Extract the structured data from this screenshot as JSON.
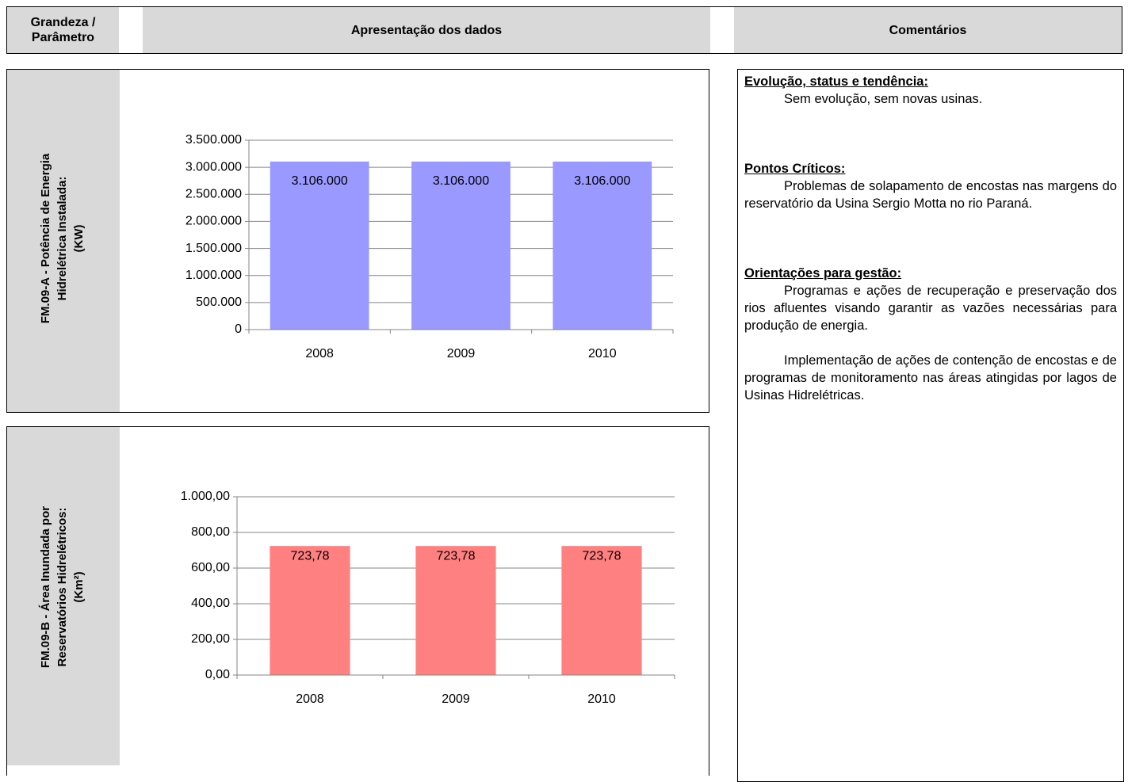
{
  "header": {
    "parameter": [
      "Grandeza /",
      "Parâmetro"
    ],
    "data": "Apresentação dos dados",
    "comments": "Comentários"
  },
  "parameters": [
    {
      "lines": [
        "FM.09-A - Potência de Energia",
        "Hidrelétrica Instalada:",
        "(KW)"
      ]
    },
    {
      "lines": [
        "FM.09-B - Área Inundada por",
        "Reservatórios Hidrelétricos:",
        "(Km²)"
      ]
    }
  ],
  "chart_data": [
    {
      "type": "bar",
      "categories": [
        "2008",
        "2009",
        "2010"
      ],
      "values": [
        3106000,
        3106000,
        3106000
      ],
      "value_labels": [
        "3.106.000",
        "3.106.000",
        "3.106.000"
      ],
      "color": "#9999ff",
      "ylim": [
        0,
        3500000
      ],
      "yticks": [
        0,
        {
          "value": 500000,
          "label": "500.000"
        },
        {
          "value": 1000000,
          "label": "1.000.000"
        },
        {
          "value": 1500000,
          "label": "1.500.000"
        },
        {
          "value": 2000000,
          "label": "2.000.000"
        },
        {
          "value": 2500000,
          "label": "2.500.000"
        },
        {
          "value": 3000000,
          "label": "3.000.000"
        },
        {
          "value": 3500000,
          "label": "3.500.000"
        }
      ],
      "grid": true
    },
    {
      "type": "bar",
      "categories": [
        "2008",
        "2009",
        "2010"
      ],
      "values": [
        723.78,
        723.78,
        723.78
      ],
      "value_labels": [
        "723,78",
        "723,78",
        "723,78"
      ],
      "color": "#ff8080",
      "ylim": [
        0,
        1000
      ],
      "yticks": [
        {
          "value": 0,
          "label": "0,00"
        },
        {
          "value": 200,
          "label": "200,00"
        },
        {
          "value": 400,
          "label": "400,00"
        },
        {
          "value": 600,
          "label": "600,00"
        },
        {
          "value": 800,
          "label": "800,00"
        },
        {
          "value": 1000,
          "label": "1.000,00"
        }
      ],
      "grid": true
    }
  ],
  "comments": [
    {
      "heading": "Evolução, status e tendência:",
      "paragraphs": [
        "Sem evolução, sem novas usinas."
      ]
    },
    {
      "heading": "Pontos Críticos:",
      "paragraphs": [
        "Problemas de solapamento de encostas nas margens do reservatório da Usina Sergio Motta no rio Paraná."
      ]
    },
    {
      "heading": "Orientações para gestão:",
      "paragraphs": [
        "Programas e ações de recuperação e preservação dos rios afluentes visando garantir as vazões necessárias para produção de energia.",
        "Implementação de ações de contenção de encostas e de programas de monitoramento nas áreas atingidas por lagos de Usinas Hidrelétricas."
      ]
    }
  ]
}
